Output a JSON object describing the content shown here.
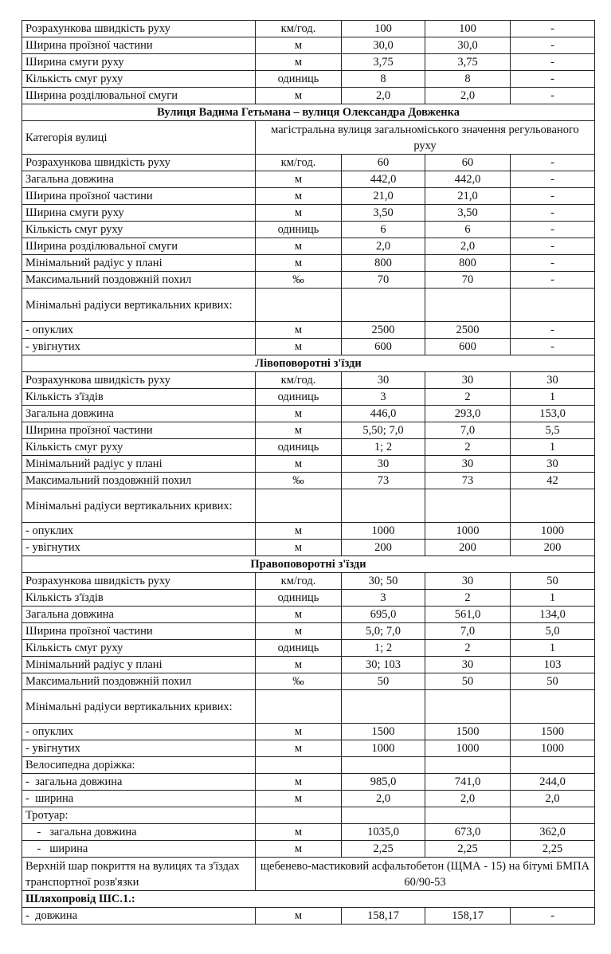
{
  "rows": [
    {
      "type": "data",
      "label": "Розрахункова швидкість руху",
      "unit": "км/год.",
      "v": [
        "100",
        "100",
        "-"
      ]
    },
    {
      "type": "data",
      "label": "Ширина проїзної частини",
      "unit": "м",
      "v": [
        "30,0",
        "30,0",
        "-"
      ]
    },
    {
      "type": "data",
      "label": "Ширина смуги руху",
      "unit": "м",
      "v": [
        "3,75",
        "3,75",
        "-"
      ]
    },
    {
      "type": "data",
      "label": "Кількість смуг руху",
      "unit": "одиниць",
      "v": [
        "8",
        "8",
        "-"
      ]
    },
    {
      "type": "data",
      "label": "Ширина розділювальної смуги",
      "unit": "м",
      "v": [
        "2,0",
        "2,0",
        "-"
      ]
    },
    {
      "type": "section",
      "label": "Вулиця Вадима Гетьмана – вулиця Олександра Довженка"
    },
    {
      "type": "span",
      "label": "Категорія вулиці",
      "text": "магістральна вулиця загальноміського значення регульованого руху"
    },
    {
      "type": "data",
      "label": "Розрахункова швидкість руху",
      "unit": "км/год.",
      "v": [
        "60",
        "60",
        "-"
      ]
    },
    {
      "type": "data",
      "label": "Загальна довжина",
      "unit": "м",
      "v": [
        "442,0",
        "442,0",
        "-"
      ]
    },
    {
      "type": "data",
      "label": "Ширина проїзної частини",
      "unit": "м",
      "v": [
        "21,0",
        "21,0",
        "-"
      ]
    },
    {
      "type": "data",
      "label": "Ширина смуги руху",
      "unit": "м",
      "v": [
        "3,50",
        "3,50",
        "-"
      ]
    },
    {
      "type": "data",
      "label": "Кількість смуг руху",
      "unit": "одиниць",
      "v": [
        "6",
        "6",
        "-"
      ]
    },
    {
      "type": "data",
      "label": "Ширина розділювальної смуги",
      "unit": "м",
      "v": [
        "2,0",
        "2,0",
        "-"
      ]
    },
    {
      "type": "data",
      "label": "Мінімальний радіус у плані",
      "unit": "м",
      "v": [
        "800",
        "800",
        "-"
      ]
    },
    {
      "type": "data",
      "label": "Максимальний поздовжній похил",
      "unit": "‰",
      "v": [
        "70",
        "70",
        "-"
      ]
    },
    {
      "type": "tall",
      "label": "Мінімальні радіуси вертикальних кривих:"
    },
    {
      "type": "data",
      "label": "- опуклих",
      "unit": "м",
      "v": [
        "2500",
        "2500",
        "-"
      ]
    },
    {
      "type": "data",
      "label": "- увігнутих",
      "unit": "м",
      "v": [
        "600",
        "600",
        "-"
      ]
    },
    {
      "type": "section",
      "label": "Лівоповоротні з'їзди"
    },
    {
      "type": "data",
      "label": "Розрахункова швидкість руху",
      "unit": "км/год.",
      "v": [
        "30",
        "30",
        "30"
      ]
    },
    {
      "type": "data",
      "label": "Кількість з'їздів",
      "unit": "одиниць",
      "v": [
        "3",
        "2",
        "1"
      ]
    },
    {
      "type": "data",
      "label": "Загальна довжина",
      "unit": "м",
      "v": [
        "446,0",
        "293,0",
        "153,0"
      ]
    },
    {
      "type": "data",
      "label": "Ширина проїзної частини",
      "unit": "м",
      "v": [
        "5,50; 7,0",
        "7,0",
        "5,5"
      ]
    },
    {
      "type": "data",
      "label": "Кількість смуг руху",
      "unit": "одиниць",
      "v": [
        "1; 2",
        "2",
        "1"
      ]
    },
    {
      "type": "data",
      "label": "Мінімальний радіус у плані",
      "unit": "м",
      "v": [
        "30",
        "30",
        "30"
      ]
    },
    {
      "type": "data",
      "label": "Максимальний поздовжній похил",
      "unit": "‰",
      "v": [
        "73",
        "73",
        "42"
      ]
    },
    {
      "type": "tall",
      "label": "Мінімальні радіуси вертикальних кривих:"
    },
    {
      "type": "data",
      "label": "- опуклих",
      "unit": "м",
      "v": [
        "1000",
        "1000",
        "1000"
      ]
    },
    {
      "type": "data",
      "label": "- увігнутих",
      "unit": "м",
      "v": [
        "200",
        "200",
        "200"
      ]
    },
    {
      "type": "section",
      "label": "Правоповоротні з'їзди"
    },
    {
      "type": "data",
      "label": "Розрахункова швидкість руху",
      "unit": "км/год.",
      "v": [
        "30; 50",
        "30",
        "50"
      ]
    },
    {
      "type": "data",
      "label": "Кількість з'їздів",
      "unit": "одиниць",
      "v": [
        "3",
        "2",
        "1"
      ]
    },
    {
      "type": "data",
      "label": "Загальна довжина",
      "unit": "м",
      "v": [
        "695,0",
        "561,0",
        "134,0"
      ]
    },
    {
      "type": "data",
      "label": "Ширина проїзної частини",
      "unit": "м",
      "v": [
        "5,0; 7,0",
        "7,0",
        "5,0"
      ]
    },
    {
      "type": "data",
      "label": "Кількість смуг руху",
      "unit": "одиниць",
      "v": [
        "1; 2",
        "2",
        "1"
      ]
    },
    {
      "type": "data",
      "label": "Мінімальний радіус у плані",
      "unit": "м",
      "v": [
        "30; 103",
        "30",
        "103"
      ]
    },
    {
      "type": "data",
      "label": "Максимальний поздовжній похил",
      "unit": "‰",
      "v": [
        "50",
        "50",
        "50"
      ]
    },
    {
      "type": "tall",
      "label": "Мінімальні радіуси вертикальних кривих:"
    },
    {
      "type": "data",
      "label": "- опуклих",
      "unit": "м",
      "v": [
        "1500",
        "1500",
        "1500"
      ]
    },
    {
      "type": "data",
      "label": "- увігнутих",
      "unit": "м",
      "v": [
        "1000",
        "1000",
        "1000"
      ]
    },
    {
      "type": "blank",
      "label": "Велосипедна доріжка:"
    },
    {
      "type": "data",
      "label": "-  загальна довжина",
      "unit": "м",
      "v": [
        "985,0",
        "741,0",
        "244,0"
      ]
    },
    {
      "type": "data",
      "label": "-  ширина",
      "unit": "м",
      "v": [
        "2,0",
        "2,0",
        "2,0"
      ]
    },
    {
      "type": "blank",
      "label": "Тротуар:"
    },
    {
      "type": "data",
      "label": "    -   загальна довжина",
      "unit": "м",
      "v": [
        "1035,0",
        "673,0",
        "362,0"
      ]
    },
    {
      "type": "data",
      "label": "    -   ширина",
      "unit": "м",
      "v": [
        "2,25",
        "2,25",
        "2,25"
      ]
    },
    {
      "type": "span2",
      "label": "Верхній шар покриття на вулицях та з'їздах транспортної розв'язки",
      "text": "щебенево-мастиковий асфальтобетон (ЩМА - 15) на бітумі БМПА 60/90-53"
    },
    {
      "type": "boldrow",
      "label": "Шляхопровід ШС.1.:"
    },
    {
      "type": "data",
      "label": "-  довжина",
      "unit": "м",
      "v": [
        "158,17",
        "158,17",
        "-"
      ]
    }
  ]
}
